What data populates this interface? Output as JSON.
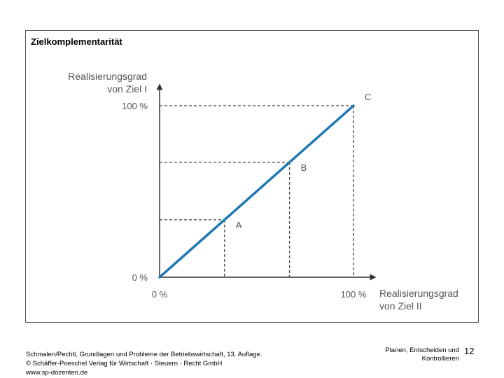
{
  "slide": {
    "title": "Zielkomplementarität",
    "footer_lines": [
      "Schmalen/Pechtl, Grundlagen und Probleme der Betriebswirtschaft, 13. Auflage.",
      "© Schäffer-Poeschel Verlag für Wirtschaft · Steuern · Recht GmbH",
      "www.sp-dozenten.de"
    ],
    "section_lines": [
      "Planen, Entscheiden und",
      "Kontrollieren"
    ],
    "page_number": "12"
  },
  "chart_data": {
    "type": "line",
    "ylabel_lines": [
      "Realisierungsgrad",
      "von Ziel I"
    ],
    "xlabel_lines": [
      "Realisierungsgrad",
      "von Ziel II"
    ],
    "x_ticks": [
      "0 %",
      "100 %"
    ],
    "y_ticks": [
      "0 %",
      "100 %"
    ],
    "xlim": [
      0,
      100
    ],
    "ylim": [
      0,
      100
    ],
    "series": [
      {
        "x": [
          0,
          100
        ],
        "y": [
          0,
          100
        ]
      }
    ],
    "points": [
      {
        "label": "A",
        "x": 33.5,
        "y": 33.5
      },
      {
        "label": "B",
        "x": 67,
        "y": 67
      },
      {
        "label": "C",
        "x": 100,
        "y": 100
      }
    ],
    "line_color": "#1f78b4",
    "axis_color": "#333333",
    "label_color": "#555555"
  }
}
